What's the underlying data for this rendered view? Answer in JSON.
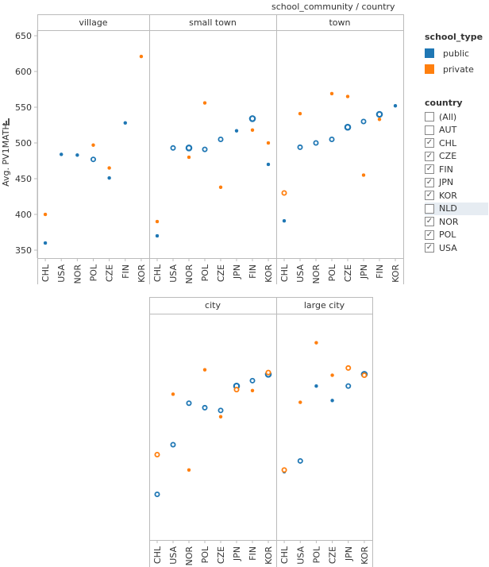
{
  "header": {
    "title": "school_community  / country"
  },
  "yaxis": {
    "label": "Avg. PV1MATH",
    "ticks": [
      350,
      400,
      450,
      500,
      550,
      600,
      650
    ]
  },
  "legend_school_type": {
    "title": "school_type",
    "items": [
      {
        "label": "public",
        "color": "#1f77b4"
      },
      {
        "label": "private",
        "color": "#ff7f0e"
      }
    ]
  },
  "legend_country": {
    "title": "country",
    "items": [
      {
        "label": "(All)",
        "checked": false,
        "highlight": false
      },
      {
        "label": "AUT",
        "checked": false,
        "highlight": false
      },
      {
        "label": "CHL",
        "checked": true,
        "highlight": false
      },
      {
        "label": "CZE",
        "checked": true,
        "highlight": false
      },
      {
        "label": "FIN",
        "checked": true,
        "highlight": false
      },
      {
        "label": "JPN",
        "checked": true,
        "highlight": false
      },
      {
        "label": "KOR",
        "checked": true,
        "highlight": false
      },
      {
        "label": "NLD",
        "checked": false,
        "highlight": true
      },
      {
        "label": "NOR",
        "checked": true,
        "highlight": false
      },
      {
        "label": "POL",
        "checked": true,
        "highlight": false
      },
      {
        "label": "USA",
        "checked": true,
        "highlight": false
      }
    ]
  },
  "chart_data": {
    "type": "scatter",
    "ylabel": "Avg. PV1MATH",
    "ylim": [
      340,
      660
    ],
    "series_colors": {
      "public": "#1f77b4",
      "private": "#ff7f0e"
    },
    "panels": [
      {
        "title": "village",
        "categories": [
          "CHL",
          "USA",
          "NOR",
          "POL",
          "CZE",
          "FIN",
          "KOR"
        ],
        "series": [
          {
            "name": "public",
            "values": [
              360,
              484,
              483,
              477,
              451,
              528,
              null
            ],
            "size": [
              1,
              1,
              1,
              2,
              1,
              1,
              1
            ]
          },
          {
            "name": "private",
            "values": [
              400,
              null,
              null,
              497,
              465,
              null,
              621
            ],
            "size": [
              1,
              1,
              1,
              1,
              1,
              1,
              1
            ]
          }
        ]
      },
      {
        "title": "small town",
        "categories": [
          "CHL",
          "USA",
          "NOR",
          "POL",
          "CZE",
          "JPN",
          "FIN",
          "KOR"
        ],
        "series": [
          {
            "name": "public",
            "values": [
              370,
              493,
              493,
              491,
              505,
              517,
              534,
              470
            ],
            "size": [
              1,
              2,
              3,
              2,
              2,
              1,
              3,
              1
            ]
          },
          {
            "name": "private",
            "values": [
              390,
              null,
              480,
              556,
              438,
              null,
              518,
              500
            ],
            "size": [
              1,
              1,
              1,
              1,
              1,
              1,
              1,
              1
            ]
          }
        ]
      },
      {
        "title": "town",
        "categories": [
          "CHL",
          "USA",
          "NOR",
          "POL",
          "CZE",
          "JPN",
          "FIN",
          "KOR"
        ],
        "series": [
          {
            "name": "public",
            "values": [
              391,
              494,
              500,
              505,
              522,
              530,
              540,
              552
            ],
            "size": [
              1,
              2,
              2,
              2,
              3,
              2,
              3,
              1
            ]
          },
          {
            "name": "private",
            "values": [
              430,
              541,
              null,
              569,
              565,
              455,
              533,
              null
            ],
            "size": [
              2,
              1,
              1,
              1,
              1,
              1,
              1,
              1
            ]
          }
        ]
      },
      {
        "title": "city",
        "categories": [
          "CHL",
          "USA",
          "NOR",
          "POL",
          "CZE",
          "JPN",
          "FIN",
          "KOR"
        ],
        "series": [
          {
            "name": "public",
            "values": [
              373,
              428,
              474,
              469,
              466,
              493,
              499,
              506
            ],
            "size": [
              2,
              2,
              2,
              2,
              2,
              3,
              2,
              3
            ]
          },
          {
            "name": "private",
            "values": [
              417,
              484,
              400,
              511,
              459,
              489,
              488,
              508
            ],
            "size": [
              2,
              1,
              1,
              1,
              1,
              2,
              1,
              2
            ]
          }
        ]
      },
      {
        "title": "large city",
        "categories": [
          "CHL",
          "USA",
          "POL",
          "CZE",
          "JPN",
          "KOR"
        ],
        "series": [
          {
            "name": "public",
            "values": [
              398,
              410,
              493,
              477,
              493,
              506
            ],
            "size": [
              1,
              2,
              1,
              1,
              2,
              3
            ]
          },
          {
            "name": "private",
            "values": [
              400,
              475,
              541,
              505,
              513,
              505
            ],
            "size": [
              2,
              1,
              1,
              1,
              2,
              2
            ]
          }
        ]
      }
    ]
  }
}
